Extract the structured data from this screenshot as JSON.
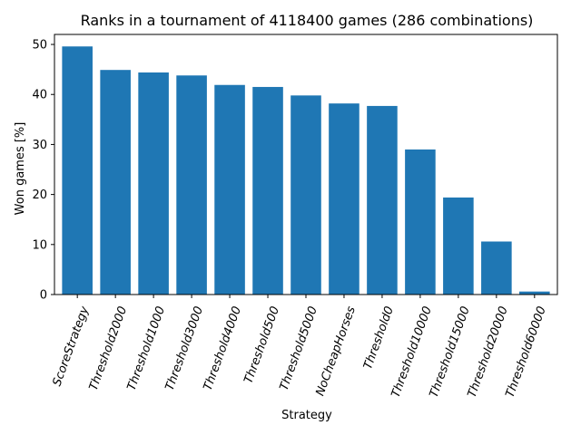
{
  "chart_data": {
    "type": "bar",
    "title": "Ranks in a tournament of 4118400 games (286 combinations)",
    "xlabel": "Strategy",
    "ylabel": "Won games [%]",
    "ylim": [
      0,
      52
    ],
    "yticks": [
      0,
      10,
      20,
      30,
      40,
      50
    ],
    "grid": false,
    "bar_color": "#1f77b4",
    "categories": [
      "ScoreStrategy",
      "Threshold2000",
      "Threshold1000",
      "Threshold3000",
      "Threshold4000",
      "Threshold500",
      "Threshold5000",
      "NoCheapHorses",
      "Threshold0",
      "Threshold10000",
      "Threshold15000",
      "Threshold20000",
      "Threshold60000"
    ],
    "values": [
      49.6,
      44.9,
      44.4,
      43.8,
      41.9,
      41.5,
      39.8,
      38.2,
      37.7,
      29.0,
      19.4,
      10.6,
      0.6
    ]
  }
}
